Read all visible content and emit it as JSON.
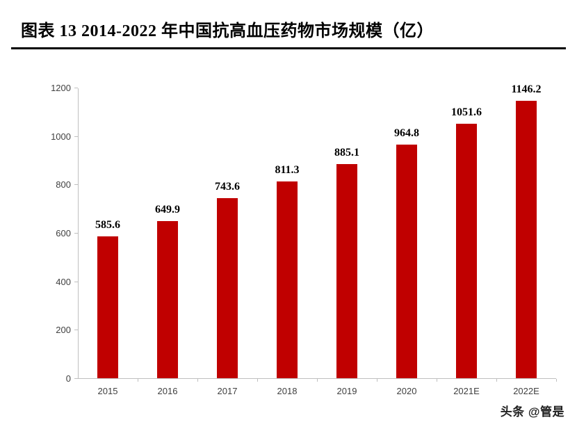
{
  "header": {
    "title": "图表  13 2014-2022 年中国抗高血压药物市场规模（亿）"
  },
  "chart_data": {
    "type": "bar",
    "title": "2014-2022 年中国抗高血压药物市场规模（亿）",
    "categories": [
      "2015",
      "2016",
      "2017",
      "2018",
      "2019",
      "2020",
      "2021E",
      "2022E"
    ],
    "values": [
      585.6,
      649.9,
      743.6,
      811.3,
      885.1,
      964.8,
      1051.6,
      1146.2
    ],
    "xlabel": "",
    "ylabel": "",
    "ylim": [
      0,
      1200
    ],
    "yticks": [
      0,
      200,
      400,
      600,
      800,
      1000,
      1200
    ],
    "bar_color": "#c00000",
    "value_label_color": "#000000",
    "axis_color": "#bfbfbf",
    "tick_label_color": "#404040",
    "grid": false,
    "legend": false
  },
  "footer": {
    "watermark": "头条 @管是"
  }
}
